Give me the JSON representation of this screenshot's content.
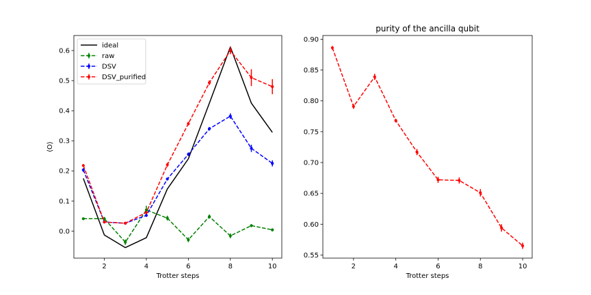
{
  "chart_data": [
    {
      "type": "line",
      "title": "",
      "xlabel": "Trotter steps",
      "ylabel": "⟨O⟩",
      "xlim": [
        0.55,
        10.45
      ],
      "ylim": [
        -0.09,
        0.65
      ],
      "xticks": [
        2,
        4,
        6,
        8,
        10
      ],
      "yticks": [
        0.0,
        0.1,
        0.2,
        0.3,
        0.4,
        0.5,
        0.6
      ],
      "ytick_labels": [
        "0.0",
        "0.1",
        "0.2",
        "0.3",
        "0.4",
        "0.5",
        "0.6"
      ],
      "legend_position": "top-left",
      "grid": false,
      "series": [
        {
          "name": "ideal",
          "color": "#000000",
          "style": "solid",
          "errorbars": false,
          "x": [
            1,
            2,
            3,
            4,
            5,
            6,
            7,
            8,
            9,
            10
          ],
          "y": [
            0.175,
            -0.013,
            -0.055,
            -0.022,
            0.14,
            0.24,
            0.425,
            0.612,
            0.425,
            0.328
          ],
          "yerr": [
            0,
            0,
            0,
            0,
            0,
            0,
            0,
            0,
            0,
            0
          ]
        },
        {
          "name": "raw",
          "color": "#008000",
          "style": "dashed",
          "errorbars": true,
          "x": [
            1,
            2,
            3,
            4,
            5,
            6,
            7,
            8,
            9,
            10
          ],
          "y": [
            0.041,
            0.041,
            -0.037,
            0.07,
            0.043,
            -0.029,
            0.048,
            -0.016,
            0.018,
            0.004
          ],
          "yerr": [
            0.004,
            0.006,
            0.009,
            0.014,
            0.008,
            0.008,
            0.007,
            0.008,
            0.005,
            0.005
          ]
        },
        {
          "name": "DSV",
          "color": "#0000ff",
          "style": "dashed",
          "errorbars": true,
          "x": [
            1,
            2,
            3,
            4,
            5,
            6,
            7,
            8,
            9,
            10
          ],
          "y": [
            0.203,
            0.03,
            0.026,
            0.052,
            0.173,
            0.255,
            0.34,
            0.382,
            0.275,
            0.225
          ],
          "yerr": [
            0.006,
            0.004,
            0.004,
            0.005,
            0.005,
            0.006,
            0.006,
            0.009,
            0.012,
            0.01
          ]
        },
        {
          "name": "DSV_purified",
          "color": "#ff0000",
          "style": "dashed",
          "errorbars": true,
          "x": [
            1,
            2,
            3,
            4,
            5,
            6,
            7,
            8,
            9,
            10
          ],
          "y": [
            0.218,
            0.03,
            0.026,
            0.062,
            0.22,
            0.357,
            0.493,
            0.6,
            0.51,
            0.48
          ],
          "yerr": [
            0.004,
            0.004,
            0.004,
            0.005,
            0.007,
            0.006,
            0.008,
            0.012,
            0.028,
            0.025
          ]
        }
      ]
    },
    {
      "type": "line",
      "title": "purity of the ancilla qubit",
      "xlabel": "Trotter steps",
      "ylabel": "",
      "xlim": [
        0.55,
        10.45
      ],
      "ylim": [
        0.545,
        0.906
      ],
      "xticks": [
        2,
        4,
        6,
        8,
        10
      ],
      "yticks": [
        0.55,
        0.6,
        0.65,
        0.7,
        0.75,
        0.8,
        0.85,
        0.9
      ],
      "ytick_labels": [
        "0.55",
        "0.60",
        "0.65",
        "0.70",
        "0.75",
        "0.80",
        "0.85",
        "0.90"
      ],
      "legend_position": "none",
      "grid": false,
      "series": [
        {
          "color": "#ff0000",
          "style": "dashed",
          "errorbars": true,
          "x": [
            1,
            2,
            3,
            4,
            5,
            6,
            7,
            8,
            9,
            10
          ],
          "y": [
            0.886,
            0.791,
            0.839,
            0.768,
            0.717,
            0.672,
            0.671,
            0.651,
            0.594,
            0.565
          ],
          "yerr": [
            0.003,
            0.004,
            0.005,
            0.003,
            0.005,
            0.005,
            0.005,
            0.006,
            0.006,
            0.005
          ]
        }
      ]
    }
  ]
}
